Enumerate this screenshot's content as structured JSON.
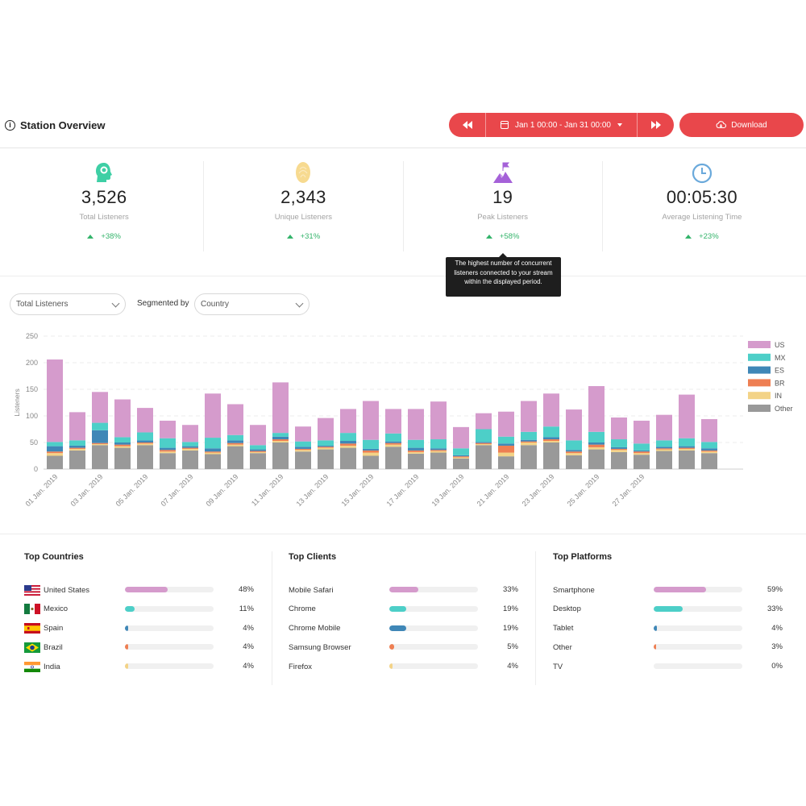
{
  "header": {
    "title": "Station Overview",
    "date_range": "Jan 1 00:00 - Jan 31 00:00",
    "download_label": "Download",
    "accent": "#e9474b"
  },
  "kpis": [
    {
      "icon": "headphones-head-icon",
      "value": "3,526",
      "label": "Total Listeners",
      "change": "+38%",
      "color": "#3ecfa5"
    },
    {
      "icon": "fingerprint-icon",
      "value": "2,343",
      "label": "Unique Listeners",
      "change": "+31%",
      "color": "#f7da90"
    },
    {
      "icon": "mountain-flag-icon",
      "value": "19",
      "label": "Peak Listeners",
      "change": "+58%",
      "color": "#a561d8"
    },
    {
      "icon": "clock-icon",
      "value": "00:05:30",
      "label": "Average Listening Time",
      "change": "+23%",
      "color": "#6aa9db"
    }
  ],
  "tooltip": "The highest number of concurrent listeners connected to your stream within the displayed period.",
  "filters": {
    "metric": "Total Listeners",
    "segmented_by_label": "Segmented by",
    "segment": "Country"
  },
  "chart_data": {
    "type": "bar",
    "stacked": true,
    "ylabel": "Listeners",
    "ylim": [
      0,
      250
    ],
    "yticks": [
      0,
      50,
      100,
      150,
      200,
      250
    ],
    "grid": true,
    "legend_position": "right",
    "categories": [
      "01 Jan. 2019",
      "02 Jan. 2019",
      "03 Jan. 2019",
      "04 Jan. 2019",
      "05 Jan. 2019",
      "06 Jan. 2019",
      "07 Jan. 2019",
      "08 Jan. 2019",
      "09 Jan. 2019",
      "10 Jan. 2019",
      "11 Jan. 2019",
      "12 Jan. 2019",
      "13 Jan. 2019",
      "14 Jan. 2019",
      "15 Jan. 2019",
      "16 Jan. 2019",
      "17 Jan. 2019",
      "18 Jan. 2019",
      "19 Jan. 2019",
      "20 Jan. 2019",
      "21 Jan. 2019",
      "22 Jan. 2019",
      "23 Jan. 2019",
      "24 Jan. 2019",
      "25 Jan. 2019",
      "26 Jan. 2019",
      "27 Jan. 2019",
      "28 Jan. 2019",
      "29 Jan. 2019",
      "30 Jan. 2019",
      "31 Jan. 2019"
    ],
    "tick_labels": [
      "01 Jan. 2019",
      "03 Jan. 2019",
      "05 Jan. 2019",
      "07 Jan. 2019",
      "09 Jan. 2019",
      "11 Jan. 2019",
      "13 Jan. 2019",
      "15 Jan. 2019",
      "17 Jan. 2019",
      "19 Jan. 2019",
      "21 Jan. 2019",
      "23 Jan. 2019",
      "25 Jan. 2019",
      "27 Jan. 2019"
    ],
    "series": [
      {
        "name": "Other",
        "color": "#999999",
        "values": [
          25,
          35,
          45,
          40,
          45,
          30,
          35,
          28,
          43,
          30,
          50,
          33,
          37,
          40,
          25,
          42,
          29,
          31,
          20,
          45,
          24,
          45,
          50,
          26,
          37,
          32,
          27,
          34,
          35,
          30,
          0
        ]
      },
      {
        "name": "IN",
        "color": "#f3d387",
        "values": [
          5,
          3,
          2,
          3,
          3,
          3,
          3,
          3,
          3,
          2,
          3,
          3,
          3,
          4,
          6,
          4,
          3,
          3,
          2,
          2,
          7,
          5,
          3,
          4,
          4,
          4,
          3,
          3,
          3,
          3,
          0
        ]
      },
      {
        "name": "BR",
        "color": "#ee7f53",
        "values": [
          3,
          2,
          2,
          3,
          2,
          3,
          2,
          2,
          3,
          2,
          3,
          2,
          2,
          4,
          4,
          3,
          3,
          2,
          2,
          2,
          13,
          2,
          3,
          3,
          5,
          2,
          3,
          2,
          2,
          2,
          0
        ]
      },
      {
        "name": "ES",
        "color": "#3f87b7",
        "values": [
          10,
          4,
          24,
          4,
          4,
          4,
          3,
          6,
          5,
          3,
          5,
          4,
          2,
          5,
          3,
          3,
          5,
          3,
          2,
          2,
          4,
          3,
          4,
          3,
          4,
          3,
          2,
          3,
          3,
          4,
          0
        ]
      },
      {
        "name": "MX",
        "color": "#4dcfc8",
        "values": [
          8,
          10,
          14,
          10,
          15,
          18,
          8,
          20,
          10,
          8,
          7,
          10,
          10,
          15,
          17,
          15,
          15,
          17,
          13,
          24,
          13,
          15,
          20,
          18,
          20,
          15,
          13,
          12,
          15,
          12,
          0
        ]
      },
      {
        "name": "US",
        "color": "#d59bcc",
        "values": [
          155,
          53,
          58,
          71,
          46,
          33,
          32,
          83,
          58,
          38,
          95,
          28,
          42,
          45,
          73,
          46,
          58,
          71,
          40,
          30,
          47,
          58,
          62,
          58,
          86,
          41,
          43,
          48,
          82,
          43,
          0
        ]
      }
    ]
  },
  "top_countries": {
    "title": "Top Countries",
    "items": [
      {
        "name": "United States",
        "pct": "48%",
        "value": 48,
        "color": "#d59bcc",
        "flag": "us-flag-icon"
      },
      {
        "name": "Mexico",
        "pct": "11%",
        "value": 11,
        "color": "#4dcfc8",
        "flag": "mexico-flag-icon"
      },
      {
        "name": "Spain",
        "pct": "4%",
        "value": 4,
        "color": "#3f87b7",
        "flag": "spain-flag-icon"
      },
      {
        "name": "Brazil",
        "pct": "4%",
        "value": 4,
        "color": "#ee7f53",
        "flag": "brazil-flag-icon"
      },
      {
        "name": "India",
        "pct": "4%",
        "value": 4,
        "color": "#f3d387",
        "flag": "india-flag-icon"
      }
    ]
  },
  "top_clients": {
    "title": "Top Clients",
    "items": [
      {
        "name": "Mobile Safari",
        "pct": "33%",
        "value": 33,
        "color": "#d59bcc"
      },
      {
        "name": "Chrome",
        "pct": "19%",
        "value": 19,
        "color": "#4dcfc8"
      },
      {
        "name": "Chrome Mobile",
        "pct": "19%",
        "value": 19,
        "color": "#3f87b7"
      },
      {
        "name": "Samsung Browser",
        "pct": "5%",
        "value": 5,
        "color": "#ee7f53"
      },
      {
        "name": "Firefox",
        "pct": "4%",
        "value": 4,
        "color": "#f3d387"
      }
    ]
  },
  "top_platforms": {
    "title": "Top Platforms",
    "items": [
      {
        "name": "Smartphone",
        "pct": "59%",
        "value": 59,
        "color": "#d59bcc"
      },
      {
        "name": "Desktop",
        "pct": "33%",
        "value": 33,
        "color": "#4dcfc8"
      },
      {
        "name": "Tablet",
        "pct": "4%",
        "value": 4,
        "color": "#3f87b7"
      },
      {
        "name": "Other",
        "pct": "3%",
        "value": 3,
        "color": "#ee7f53"
      },
      {
        "name": "TV",
        "pct": "0%",
        "value": 0,
        "color": "#f3d387"
      }
    ]
  }
}
